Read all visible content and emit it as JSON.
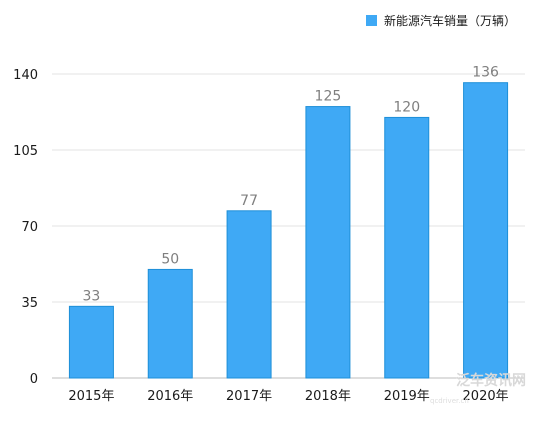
{
  "chart_data": {
    "type": "bar",
    "categories": [
      "2015年",
      "2016年",
      "2017年",
      "2018年",
      "2019年",
      "2020年"
    ],
    "series": [
      {
        "name": "新能源汽车销量（万辆）",
        "values": [
          33,
          50,
          77,
          125,
          120,
          136
        ],
        "color": "#3fa9f5"
      }
    ],
    "ylim": [
      0,
      140
    ],
    "yticks": [
      0,
      35,
      70,
      105,
      140
    ],
    "grid": true,
    "legend_position": "top-right",
    "data_labels": true
  },
  "watermark": {
    "text": "泛车资讯网",
    "subtext": "qcdriver.cn"
  }
}
